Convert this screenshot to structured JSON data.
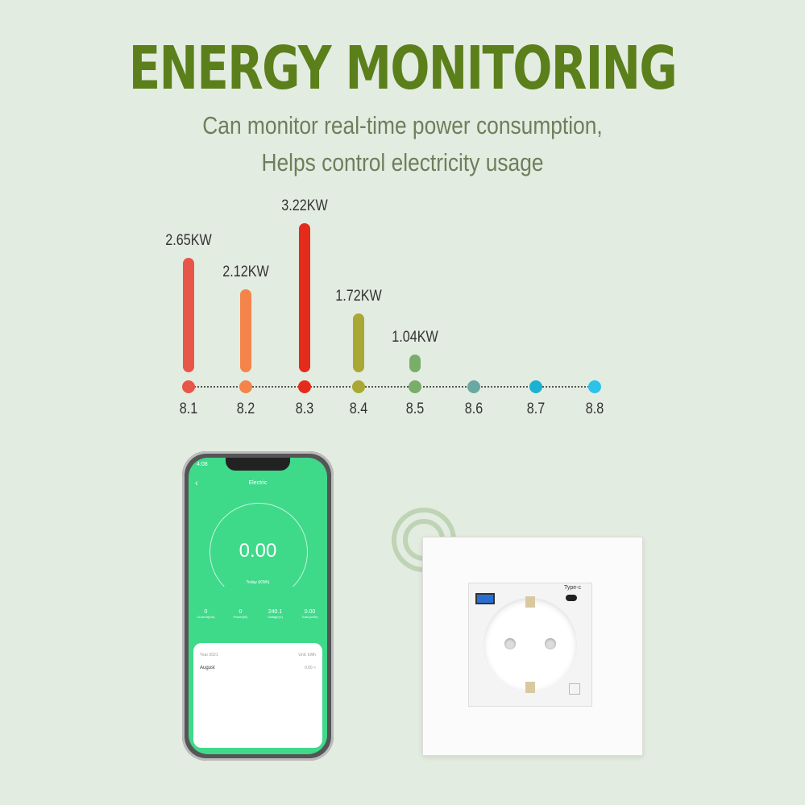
{
  "headline": "ENERGY MONITORING",
  "subtitle_lines": [
    "Can monitor real-time power consumption,",
    "Helps control electricity usage"
  ],
  "chart_data": {
    "type": "bar",
    "categories": [
      "8.1",
      "8.2",
      "8.3",
      "8.4",
      "8.5",
      "8.6",
      "8.7",
      "8.8"
    ],
    "values": [
      2.65,
      2.12,
      3.22,
      1.72,
      1.04,
      null,
      null,
      null
    ],
    "value_labels": [
      "2.65KW",
      "2.12KW",
      "3.22KW",
      "1.72KW",
      "1.04KW",
      "",
      "",
      ""
    ],
    "colors": [
      "#e8564a",
      "#f5844a",
      "#e52b1c",
      "#a9a834",
      "#78ad6a",
      "#6aa9a2",
      "#1bb1d2",
      "#2cc2ea"
    ],
    "unit": "KW"
  },
  "phone": {
    "time": "4:08",
    "screen_title": "Electric",
    "reading": "0.00",
    "reading_label": "Today (KWh)",
    "stats": [
      {
        "value": "0",
        "label": "Current(mA)"
      },
      {
        "value": "0",
        "label": "Power(W)"
      },
      {
        "value": "240.1",
        "label": "Voltage(V)"
      },
      {
        "value": "0.00",
        "label": "Total (kWh)"
      }
    ],
    "year": "Year 2021",
    "unit": "Unit: kWh",
    "month": "August",
    "month_value": "0.00 >"
  },
  "socket": {
    "usb_c_label": "Type-c"
  }
}
